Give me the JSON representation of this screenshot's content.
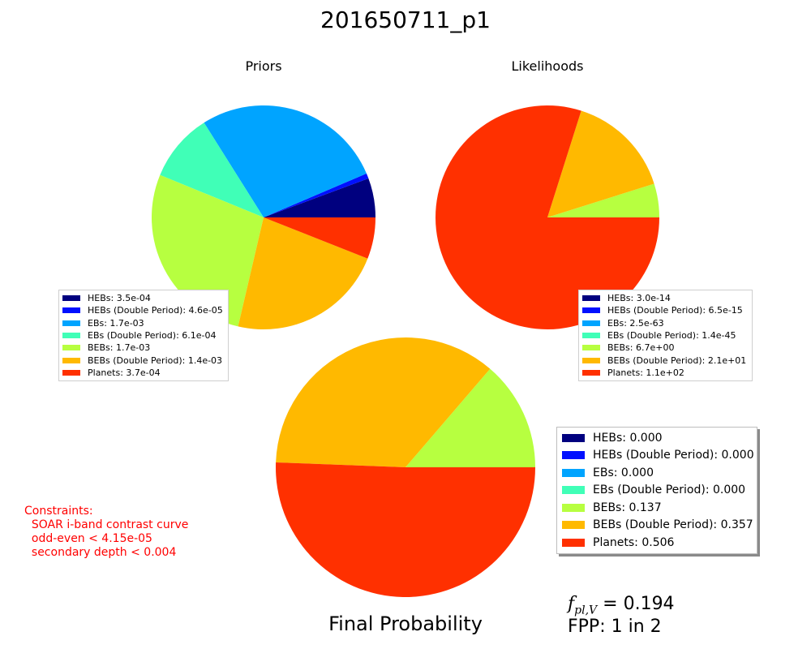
{
  "title": "201650711_p1",
  "chart_data": [
    {
      "type": "pie",
      "title": "Priors",
      "labels": [
        "HEBs",
        "HEBs (Double Period)",
        "EBs",
        "EBs (Double Period)",
        "BEBs",
        "BEBs (Double Period)",
        "Planets"
      ],
      "values": [
        0.00035,
        4.6e-05,
        0.0017,
        0.00061,
        0.0017,
        0.0014,
        0.00037
      ],
      "legend": [
        "HEBs: 3.5e-04",
        "HEBs (Double Period): 4.6e-05",
        "EBs: 1.7e-03",
        "EBs (Double Period): 6.1e-04",
        "BEBs: 1.7e-03",
        "BEBs (Double Period): 1.4e-03",
        "Planets: 3.7e-04"
      ],
      "legend_placement": "bottom-left"
    },
    {
      "type": "pie",
      "title": "Likelihoods",
      "labels": [
        "HEBs",
        "HEBs (Double Period)",
        "EBs",
        "EBs (Double Period)",
        "BEBs",
        "BEBs (Double Period)",
        "Planets"
      ],
      "values": [
        3e-14,
        6.5e-15,
        2.5e-63,
        1.4e-45,
        6.7,
        21.0,
        110.0
      ],
      "legend": [
        "HEBs: 3.0e-14",
        "HEBs (Double Period): 6.5e-15",
        "EBs: 2.5e-63",
        "EBs (Double Period): 1.4e-45",
        "BEBs: 6.7e+00",
        "BEBs (Double Period): 2.1e+01",
        "Planets: 1.1e+02"
      ],
      "legend_placement": "bottom-right"
    },
    {
      "type": "pie",
      "title": "Final Probability",
      "labels": [
        "HEBs",
        "HEBs (Double Period)",
        "EBs",
        "EBs (Double Period)",
        "BEBs",
        "BEBs (Double Period)",
        "Planets"
      ],
      "values": [
        0.0,
        0.0,
        0.0,
        0.0,
        0.137,
        0.357,
        0.506
      ],
      "legend": [
        "HEBs: 0.000",
        "HEBs (Double Period): 0.000",
        "EBs: 0.000",
        "EBs (Double Period): 0.000",
        "BEBs: 0.137",
        "BEBs (Double Period): 0.357",
        "Planets: 0.506"
      ],
      "legend_placement": "right"
    }
  ],
  "colors": [
    "#00007f",
    "#0010ff",
    "#00a4ff",
    "#40ffb7",
    "#b7ff40",
    "#ffb900",
    "#ff3000"
  ],
  "constraints": "Constraints:\n  SOAR i-band contrast curve\n  odd-even < 4.15e-05\n  secondary depth < 0.004",
  "fpl": {
    "symbol": "f",
    "subscript": "pl,V",
    "eq": " = 0.194"
  },
  "fpp": "FPP: 1 in 2"
}
